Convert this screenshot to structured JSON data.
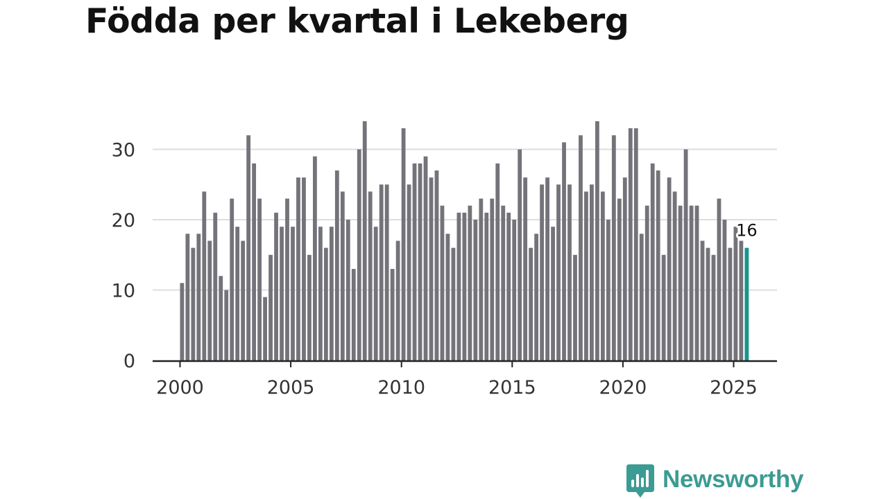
{
  "title": "Födda per kvartal i Lekeberg",
  "brand": {
    "name": "Newsworthy",
    "logo_icon": "bar-chart-speech-bubble-icon",
    "color": "#3c9b92"
  },
  "colors": {
    "bar": "#74737a",
    "highlight": "#14968b",
    "grid": "#dddddd",
    "axis": "#222222"
  },
  "chart_data": {
    "type": "bar",
    "title": "Födda per kvartal i Lekeberg",
    "xlabel": "",
    "ylabel": "",
    "ylim": [
      0,
      35
    ],
    "yticks": [
      0,
      10,
      20,
      30
    ],
    "xticks": [
      2000,
      2005,
      2010,
      2015,
      2020,
      2025
    ],
    "start": "2000 Q1",
    "end": "2025 Q3",
    "grid": true,
    "highlight": {
      "index": 102,
      "label": "16"
    },
    "values": [
      11,
      18,
      16,
      18,
      24,
      17,
      21,
      12,
      10,
      23,
      19,
      17,
      32,
      28,
      23,
      9,
      15,
      21,
      19,
      23,
      19,
      26,
      26,
      15,
      29,
      19,
      16,
      19,
      27,
      24,
      20,
      13,
      30,
      34,
      24,
      19,
      25,
      25,
      13,
      17,
      33,
      25,
      28,
      28,
      29,
      26,
      27,
      22,
      18,
      16,
      21,
      21,
      22,
      20,
      23,
      21,
      23,
      28,
      22,
      21,
      20,
      30,
      26,
      16,
      18,
      25,
      26,
      19,
      25,
      31,
      25,
      15,
      32,
      24,
      25,
      34,
      24,
      20,
      32,
      23,
      26,
      33,
      33,
      18,
      22,
      28,
      27,
      15,
      26,
      24,
      22,
      30,
      22,
      22,
      17,
      16,
      15,
      23,
      20,
      16,
      19,
      17,
      16
    ]
  }
}
